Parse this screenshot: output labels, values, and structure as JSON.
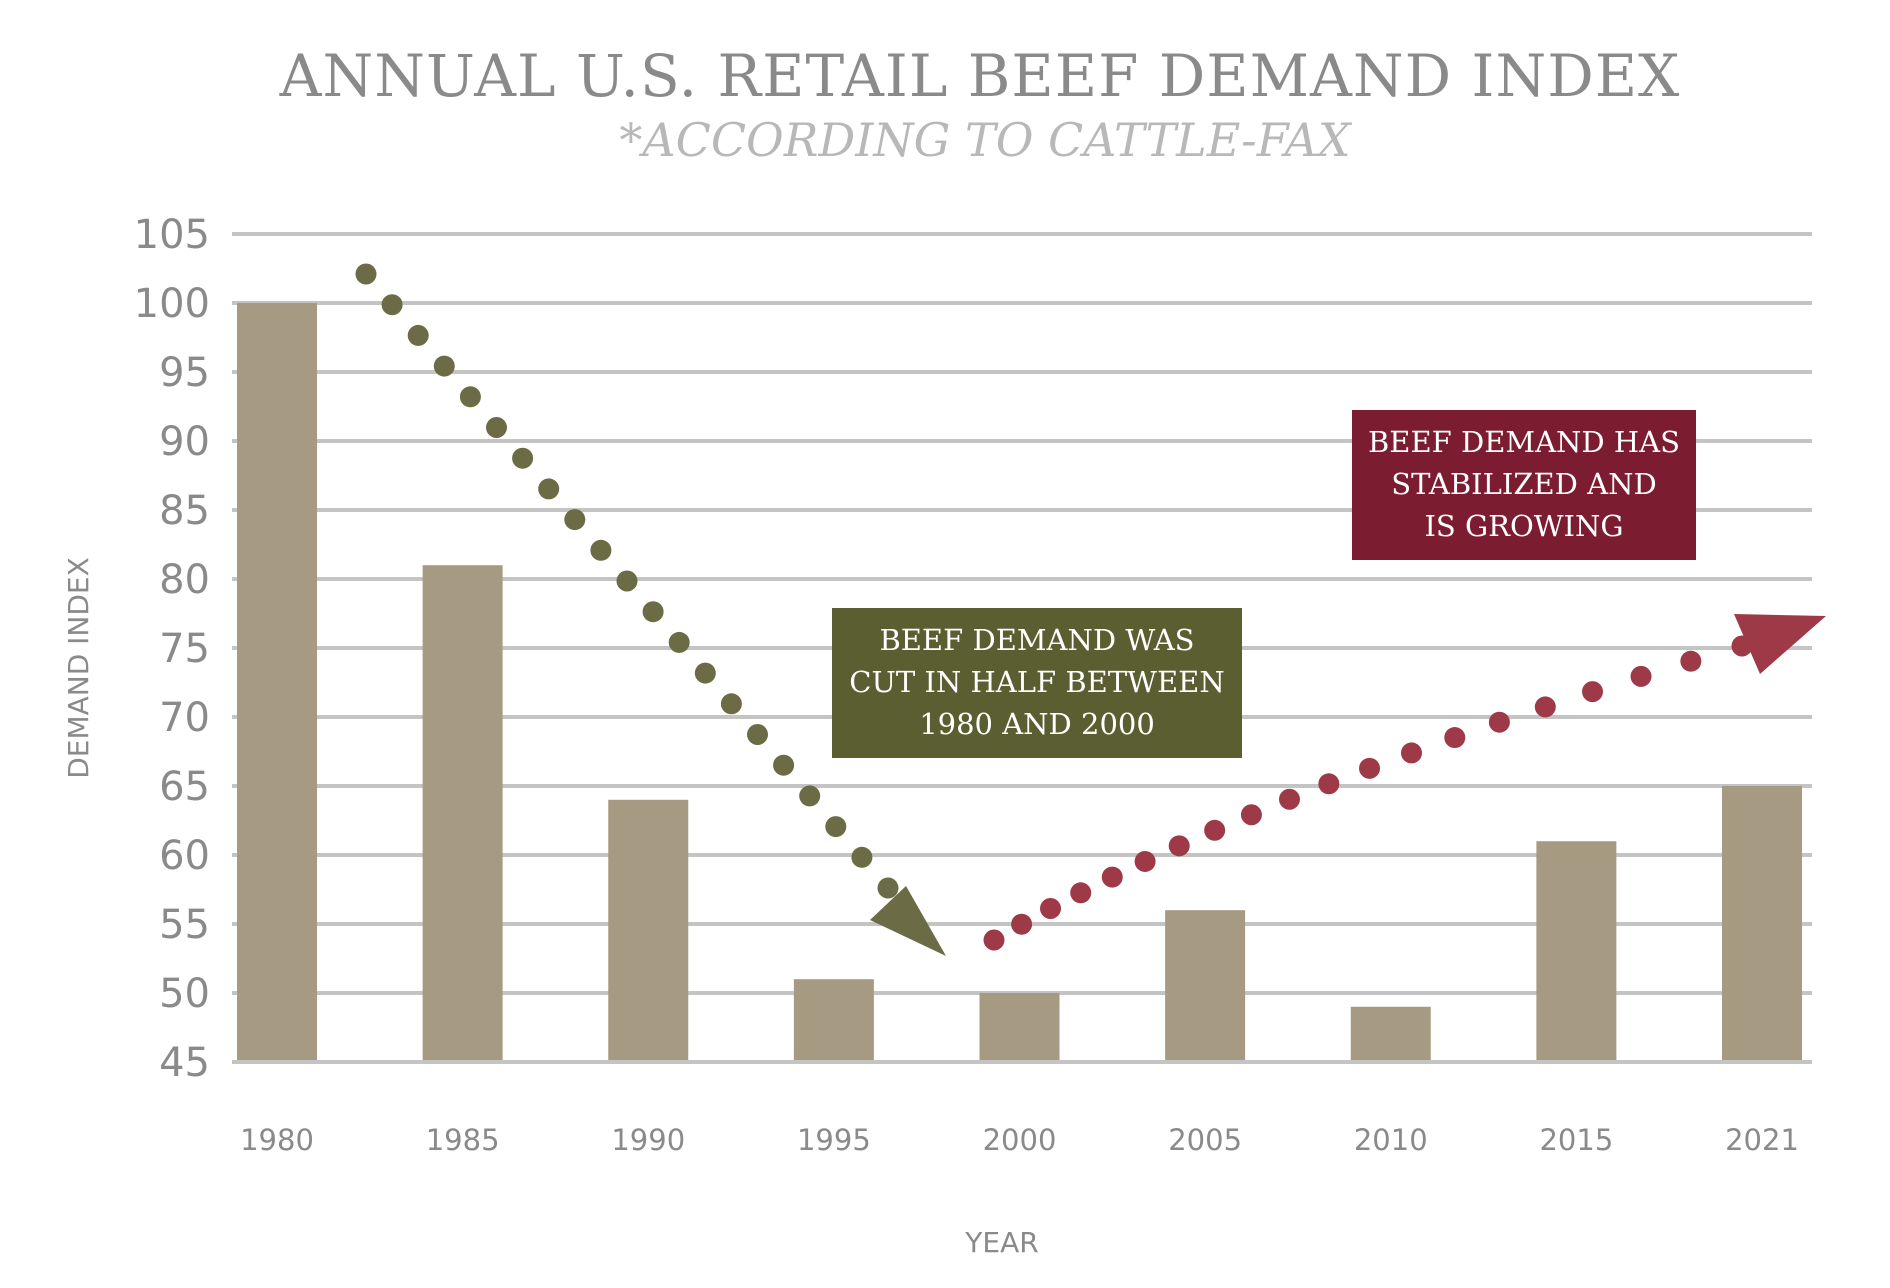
{
  "colors": {
    "bar": "#a69a82",
    "grid": "#c4c4c4",
    "decline": "#6b6b45",
    "decline_box": "#5a5e31",
    "growth": "#9e3a48",
    "growth_box": "#7c1c30",
    "title": "#8a8a8a",
    "subtitle": "#b8b8b8"
  },
  "chart_data": {
    "type": "bar",
    "title": "ANNUAL U.S. RETAIL BEEF DEMAND INDEX",
    "subtitle": "*ACCORDING TO CATTLE-FAX",
    "xlabel": "YEAR",
    "ylabel": "DEMAND INDEX",
    "categories": [
      "1980",
      "1985",
      "1990",
      "1995",
      "2000",
      "2005",
      "2010",
      "2015",
      "2021"
    ],
    "values": [
      100,
      81,
      64,
      51,
      50,
      56,
      49,
      61,
      65
    ],
    "ylim": [
      45,
      105
    ],
    "yticks": [
      105,
      100,
      95,
      90,
      85,
      80,
      75,
      70,
      65,
      60,
      55,
      50,
      45
    ],
    "grid": true,
    "legend": "none",
    "annotations": [
      {
        "id": "decline",
        "lines": [
          "BEEF DEMAND WAS",
          "CUT IN HALF BETWEEN",
          "1980 AND 2000"
        ],
        "trend": "dotted arrow decreasing from 1982 to 1998"
      },
      {
        "id": "growth",
        "lines": [
          "BEEF DEMAND HAS",
          "STABILIZED AND",
          "IS GROWING"
        ],
        "trend": "dotted arrow increasing from 2000 to 2021"
      }
    ]
  }
}
